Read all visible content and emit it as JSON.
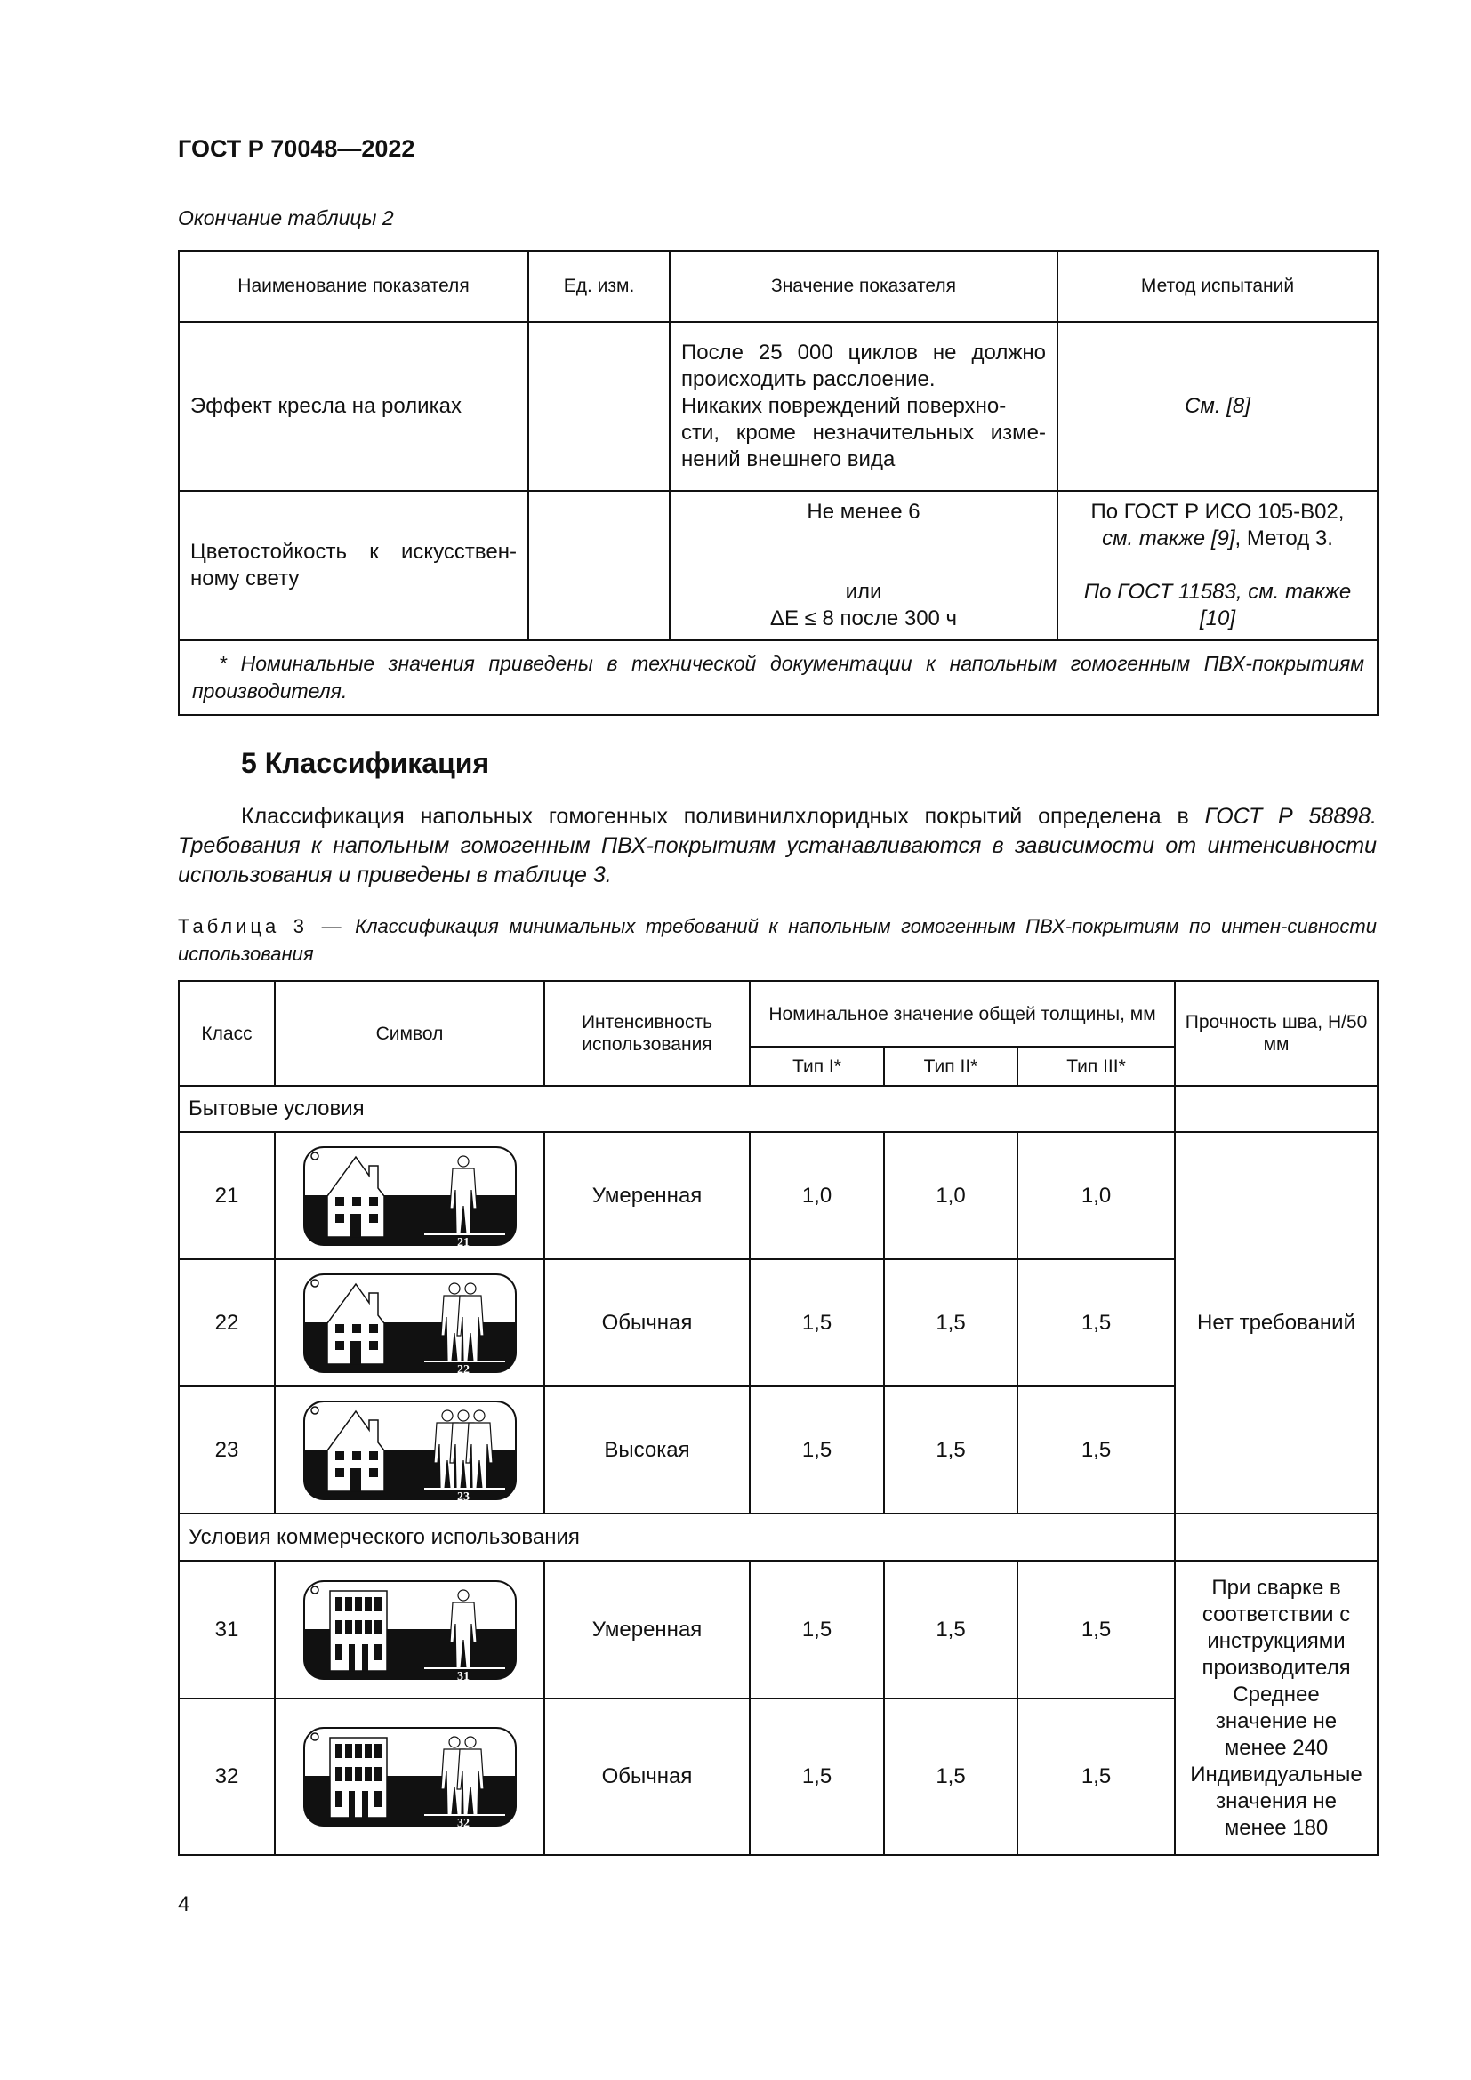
{
  "header": {
    "doc_id": "ГОСТ Р 70048—2022",
    "continuation": "Окончание таблицы 2"
  },
  "table2": {
    "headers": [
      "Наименование показателя",
      "Ед. изм.",
      "Значение показателя",
      "Метод испытаний"
    ],
    "rows": [
      {
        "name": "Эффект кресла на роликах",
        "unit": "",
        "value_lines": [
          "После 25 000 циклов не должно",
          "происходить расслоение.",
          "Никаких повреждений поверхно-",
          "сти, кроме незначительных изме-",
          "нений внешнего вида"
        ],
        "method": "См. [8]"
      },
      {
        "name_lines": [
          "Цветостойкость к искусствен-",
          "ному свету"
        ],
        "unit": "",
        "value_lines": [
          "Не менее 6",
          "или",
          "ΔE ≤ 8 после 300 ч"
        ],
        "method_line1": "По ГОСТ Р ИСО 105-В02,",
        "method_line2_italic": "см. также [9]",
        "method_line2_rest": ", Метод 3.",
        "method_line3": "По ГОСТ 11583, см. также",
        "method_line4": "[10]"
      }
    ],
    "footnote": "* Номинальные значения приведены в технической документации к напольным гомогенным ПВХ-покрытиям производителя."
  },
  "section": {
    "heading": "5 Классификация",
    "para_normal": "Классификация напольных гомогенных поливинилхлоридных покрытий определена в ",
    "para_italic": "ГОСТ Р 58898. Требования к напольным гомогенным ПВХ-покрытиям устанавливаются в зависимости от интенсивности использования и приведены в таблице 3."
  },
  "table3": {
    "caption_label": "Таблица 3 —",
    "caption_title": "Классификация минимальных требований к напольным гомогенным ПВХ-покрытиям по интен-сивности использования",
    "headers": {
      "class": "Класс",
      "symbol": "Символ",
      "intensity": "Интенсивность использования",
      "thickness": "Номинальное значение общей толщины, мм",
      "type1": "Тип I*",
      "type2": "Тип II*",
      "type3": "Тип III*",
      "seam": "Прочность шва, Н/50 мм"
    },
    "groups": [
      {
        "label": "Бытовые условия",
        "seam_lines": [
          "Нет требований"
        ],
        "rows": [
          {
            "class": "21",
            "icon": "house-one-person-icon",
            "intensity": "Умеренная",
            "t1": "1,0",
            "t2": "1,0",
            "t3": "1,0"
          },
          {
            "class": "22",
            "icon": "house-two-persons-icon",
            "intensity": "Обычная",
            "t1": "1,5",
            "t2": "1,5",
            "t3": "1,5"
          },
          {
            "class": "23",
            "icon": "house-three-persons-icon",
            "intensity": "Высокая",
            "t1": "1,5",
            "t2": "1,5",
            "t3": "1,5"
          }
        ]
      },
      {
        "label": "Условия коммерческого использования",
        "seam_lines": [
          "При сварке в",
          "соответствии с",
          "инструкциями",
          "производителя",
          "Среднее",
          "значение не",
          "менее 240",
          "Индивидуальные",
          "значения не",
          "менее 180"
        ],
        "rows": [
          {
            "class": "31",
            "icon": "building-one-person-icon",
            "intensity": "Умеренная",
            "t1": "1,5",
            "t2": "1,5",
            "t3": "1,5"
          },
          {
            "class": "32",
            "icon": "building-two-persons-icon",
            "intensity": "Обычная",
            "t1": "1,5",
            "t2": "1,5",
            "t3": "1,5"
          }
        ]
      }
    ]
  },
  "page_number": "4"
}
